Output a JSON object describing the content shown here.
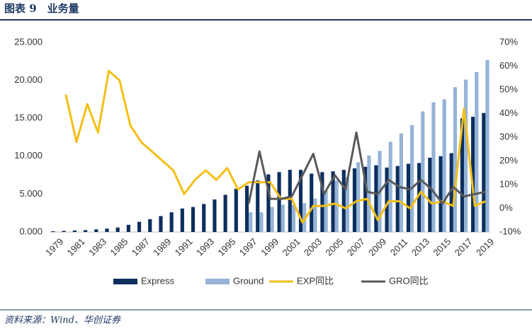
{
  "header": {
    "title": "图表 9　业务量"
  },
  "footer": {
    "source": "资料来源：Wind、华创证券"
  },
  "chart_data": {
    "type": "bar-line",
    "categories": [
      "1979",
      null,
      "1981",
      null,
      "1983",
      null,
      "1985",
      null,
      "1987",
      null,
      "1989",
      null,
      "1991",
      null,
      "1993",
      null,
      "1995",
      null,
      "1997",
      null,
      "1999",
      null,
      "2001",
      null,
      "2003",
      null,
      "2005",
      null,
      "2007",
      null,
      "2009",
      null,
      "2011",
      null,
      "2013",
      null,
      "2015",
      null,
      "2017",
      null,
      "2019"
    ],
    "series": [
      {
        "name": "Express",
        "color": "#0d2f5e",
        "kind": "bar",
        "values": [
          100,
          150,
          200,
          250,
          350,
          450,
          600,
          950,
          1350,
          1700,
          2100,
          2600,
          3100,
          3300,
          3700,
          4300,
          4900,
          5700,
          6100,
          6800,
          7600,
          7900,
          8200,
          8200,
          7700,
          7900,
          8000,
          8200,
          8400,
          8600,
          8800,
          8500,
          8700,
          9000,
          9100,
          9800,
          10000,
          10400,
          15000,
          15200,
          15700
        ]
      },
      {
        "name": "Ground",
        "color": "#95b3d7",
        "kind": "bar",
        "values": [
          null,
          null,
          null,
          null,
          null,
          null,
          null,
          null,
          null,
          null,
          null,
          null,
          null,
          null,
          null,
          null,
          null,
          null,
          2600,
          2600,
          3300,
          3600,
          3600,
          3800,
          4400,
          5400,
          6800,
          7300,
          9200,
          10100,
          10700,
          11900,
          13000,
          14100,
          15900,
          17100,
          17500,
          19100,
          20100,
          21100,
          22700
        ]
      },
      {
        "name": "EXP同比",
        "color": "#f5bf16",
        "kind": "line",
        "axis": "y2",
        "values": [
          null,
          48,
          28,
          44,
          32,
          58,
          54,
          35,
          28,
          24,
          20,
          16,
          6,
          12,
          16,
          12,
          17,
          8,
          11,
          11,
          11,
          4,
          4,
          -6,
          1,
          1,
          2,
          0,
          3,
          4,
          -5,
          3,
          3,
          0,
          7,
          2,
          3,
          1,
          42,
          1,
          3
        ]
      },
      {
        "name": "GRO同比",
        "color": "#595959",
        "kind": "line",
        "axis": "y2",
        "values": [
          null,
          null,
          null,
          null,
          null,
          null,
          null,
          null,
          null,
          null,
          null,
          null,
          null,
          null,
          null,
          null,
          null,
          null,
          2,
          24,
          4,
          4,
          5,
          14,
          23,
          6,
          14,
          8,
          32,
          7,
          6,
          12,
          9,
          8,
          12,
          8,
          2,
          9,
          5,
          6,
          7
        ]
      }
    ],
    "ylim": [
      0,
      25000
    ],
    "yticks": [
      {
        "value": 0,
        "label": "0.000"
      },
      {
        "value": 5000,
        "label": "5.000"
      },
      {
        "value": 10000,
        "label": "10.000"
      },
      {
        "value": 15000,
        "label": "15.000"
      },
      {
        "value": 20000,
        "label": "20.000"
      },
      {
        "value": 25000,
        "label": "25.000"
      }
    ],
    "y2lim": [
      -10,
      70
    ],
    "y2ticks": [
      {
        "value": -10,
        "label": "-10%"
      },
      {
        "value": 0,
        "label": "0%"
      },
      {
        "value": 10,
        "label": "10%"
      },
      {
        "value": 20,
        "label": "20%"
      },
      {
        "value": 30,
        "label": "30%"
      },
      {
        "value": 40,
        "label": "40%"
      },
      {
        "value": 50,
        "label": "50%"
      },
      {
        "value": 60,
        "label": "60%"
      },
      {
        "value": 70,
        "label": "70%"
      }
    ],
    "legend": "bottom"
  }
}
